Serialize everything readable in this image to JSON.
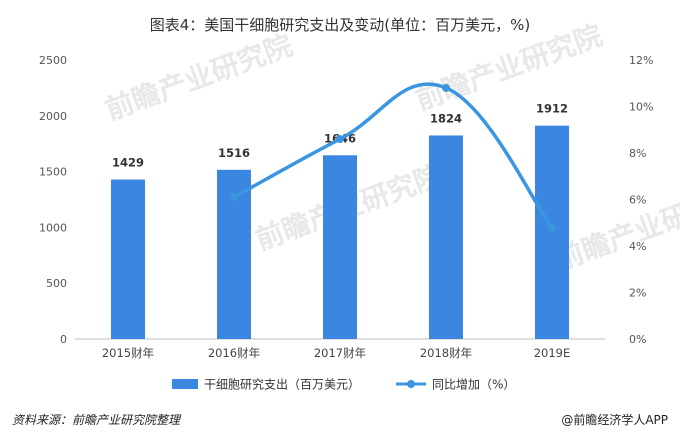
{
  "chart_data": {
    "type": "bar",
    "title": "图表4：美国干细胞研究支出及变动(单位：百万美元，%)",
    "categories": [
      "2015财年",
      "2016财年",
      "2017财年",
      "2018财年",
      "2019E"
    ],
    "series": [
      {
        "name": "干细胞研究支出（百万美元）",
        "type": "bar",
        "axis": "left",
        "values": [
          1429,
          1516,
          1646,
          1824,
          1912
        ],
        "color": "#3a86e0"
      },
      {
        "name": "同比增加（%）",
        "type": "line",
        "axis": "right",
        "values": [
          null,
          6.1,
          8.6,
          10.8,
          4.8
        ],
        "color": "#3a96e0"
      }
    ],
    "data_labels": [
      "1429",
      "1516",
      "1646",
      "1824",
      "1912"
    ],
    "ylim_left": [
      0,
      2500
    ],
    "yticks_left": [
      "0",
      "500",
      "1000",
      "1500",
      "2000",
      "2500"
    ],
    "ylim_right": [
      0,
      12
    ],
    "yticks_right": [
      "0%",
      "2%",
      "4%",
      "6%",
      "8%",
      "10%",
      "12%"
    ],
    "legend_position": "bottom",
    "grid": false
  },
  "footer": {
    "source": "资料来源：前瞻产业研究院整理",
    "brand": "@前瞻经济学人APP"
  },
  "watermark": {
    "text": "前瞻产业研究院"
  }
}
